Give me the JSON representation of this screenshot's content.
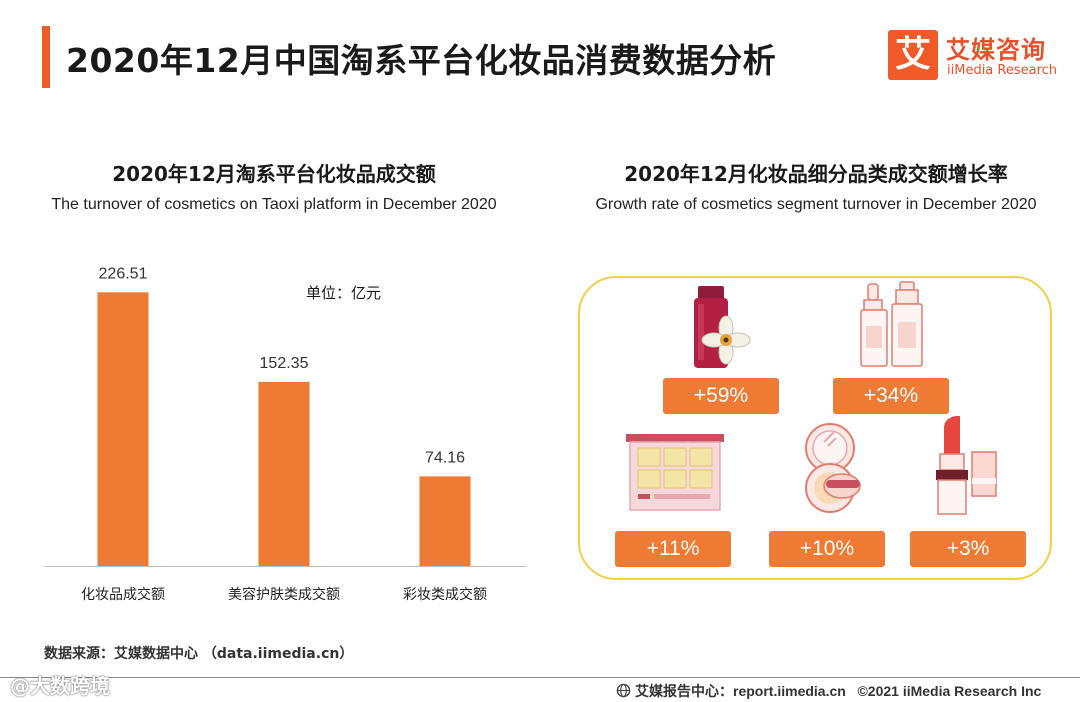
{
  "header": {
    "title": "2020年12月中国淘系平台化妆品消费数据分析",
    "logo_mark": "艾",
    "logo_cn": "艾媒咨询",
    "logo_en": "iiMedia Research"
  },
  "left_chart": {
    "title": "2020年12月淘系平台化妆品成交额",
    "subtitle": "The turnover of cosmetics on Taoxi platform in December 2020",
    "unit": "单位：亿元"
  },
  "right_chart": {
    "title": "2020年12月化妆品细分品类成交额增长率",
    "subtitle": "Growth rate of cosmetics segment turnover in December 2020",
    "items": [
      {
        "label": "+59%",
        "value": 59,
        "icon": "perfume-bottle-icon"
      },
      {
        "label": "+34%",
        "value": 34,
        "icon": "serum-bottles-icon"
      },
      {
        "label": "+11%",
        "value": 11,
        "icon": "eyeshadow-palette-icon"
      },
      {
        "label": "+10%",
        "value": 10,
        "icon": "cushion-compact-icon"
      },
      {
        "label": "+3%",
        "value": 3,
        "icon": "lipstick-icon"
      }
    ]
  },
  "chart_data": [
    {
      "type": "bar",
      "title": "2020年12月淘系平台化妆品成交额",
      "subtitle": "The turnover of cosmetics on Taoxi platform in December 2020",
      "ylabel": "亿元",
      "categories": [
        "化妆品成交额",
        "美容护肤类成交额",
        "彩妆类成交额"
      ],
      "values": [
        226.51,
        152.35,
        74.16
      ],
      "value_labels": [
        "226.51",
        "152.35",
        "74.16"
      ],
      "ylim": [
        0,
        240
      ],
      "bar_color": "#ee7a33"
    },
    {
      "type": "table",
      "title": "2020年12月化妆品细分品类成交额增长率",
      "subtitle": "Growth rate of cosmetics segment turnover in December 2020",
      "values": [
        59,
        34,
        11,
        10,
        3
      ],
      "unit": "%"
    }
  ],
  "source": "数据来源：艾媒数据中心 （data.iimedia.cn）",
  "footer": {
    "report": "艾媒报告中心：report.iimedia.cn",
    "copyright": "©2021  iiMedia Research  Inc"
  },
  "watermark": "@大数跨境",
  "colors": {
    "accent": "#f05a28",
    "bar": "#ee7a33",
    "panel_border": "#f2cf45"
  }
}
